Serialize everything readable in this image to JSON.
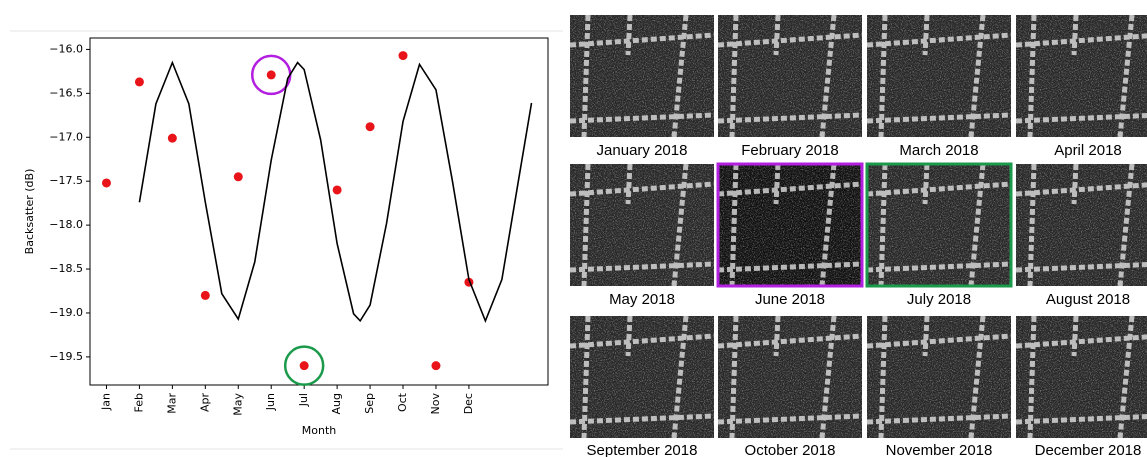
{
  "chart_data": {
    "type": "line",
    "xlabel": "Month",
    "ylabel": "Backsatter (dB)",
    "xlim": [
      -0.5,
      13.4
    ],
    "xticks": [
      {
        "value": 0,
        "label": "Jan"
      },
      {
        "value": 1,
        "label": "Feb"
      },
      {
        "value": 2,
        "label": "Mar"
      },
      {
        "value": 3,
        "label": "Apr"
      },
      {
        "value": 4,
        "label": "May"
      },
      {
        "value": 5,
        "label": "Jun"
      },
      {
        "value": 6,
        "label": "Jul"
      },
      {
        "value": 7,
        "label": "Aug"
      },
      {
        "value": 8,
        "label": "Sep"
      },
      {
        "value": 9,
        "label": "Oct"
      },
      {
        "value": 10,
        "label": "Nov"
      },
      {
        "value": 11,
        "label": "Dec"
      }
    ],
    "ylim": [
      -19.82,
      -15.87
    ],
    "yticks": [
      {
        "value": -16,
        "label": "−16.0"
      },
      {
        "value": -16.5,
        "label": "−16.5"
      },
      {
        "value": -17,
        "label": "−17.0"
      },
      {
        "value": -17.5,
        "label": "−17.5"
      },
      {
        "value": -18,
        "label": "−18.0"
      },
      {
        "value": -18.5,
        "label": "−18.5"
      },
      {
        "value": -19,
        "label": "−19.0"
      },
      {
        "value": -19.5,
        "label": "−19.5"
      }
    ],
    "series": [
      {
        "type": "scatter",
        "color": "#e8141a",
        "x": [
          0,
          1,
          2,
          3,
          4,
          5,
          6,
          7,
          8,
          9,
          10,
          11
        ],
        "values": [
          -17.52,
          -16.37,
          -17.01,
          -18.8,
          -17.45,
          -16.29,
          -19.6,
          -17.6,
          -16.88,
          -16.07,
          -19.6,
          -18.65
        ]
      },
      {
        "type": "line",
        "color": "#000000",
        "x": [
          1,
          1.5,
          2,
          2.5,
          3,
          3.5,
          4,
          4.5,
          5,
          5.5,
          5.8,
          6,
          6.5,
          7,
          7.5,
          7.7,
          8,
          8.5,
          9,
          9.5,
          10,
          10.5,
          11,
          11.5,
          12,
          12.5,
          12.9
        ],
        "values": [
          -17.74,
          -16.62,
          -16.15,
          -16.62,
          -17.74,
          -18.78,
          -19.07,
          -18.42,
          -17.26,
          -16.33,
          -16.15,
          -16.23,
          -17.03,
          -18.21,
          -19.01,
          -19.09,
          -18.91,
          -17.98,
          -16.82,
          -16.17,
          -16.46,
          -17.5,
          -18.62,
          -19.09,
          -18.62,
          -17.5,
          -16.61
        ]
      }
    ]
  },
  "images": [
    {
      "caption": "January 2018"
    },
    {
      "caption": "February 2018"
    },
    {
      "caption": "March 2018"
    },
    {
      "caption": "April 2018"
    },
    {
      "caption": "May 2018"
    },
    {
      "caption": "June 2018"
    },
    {
      "caption": "July 2018"
    },
    {
      "caption": "August 2018"
    },
    {
      "caption": "September 2018"
    },
    {
      "caption": "October 2018"
    },
    {
      "caption": "November 2018"
    },
    {
      "caption": "December 2018"
    }
  ]
}
